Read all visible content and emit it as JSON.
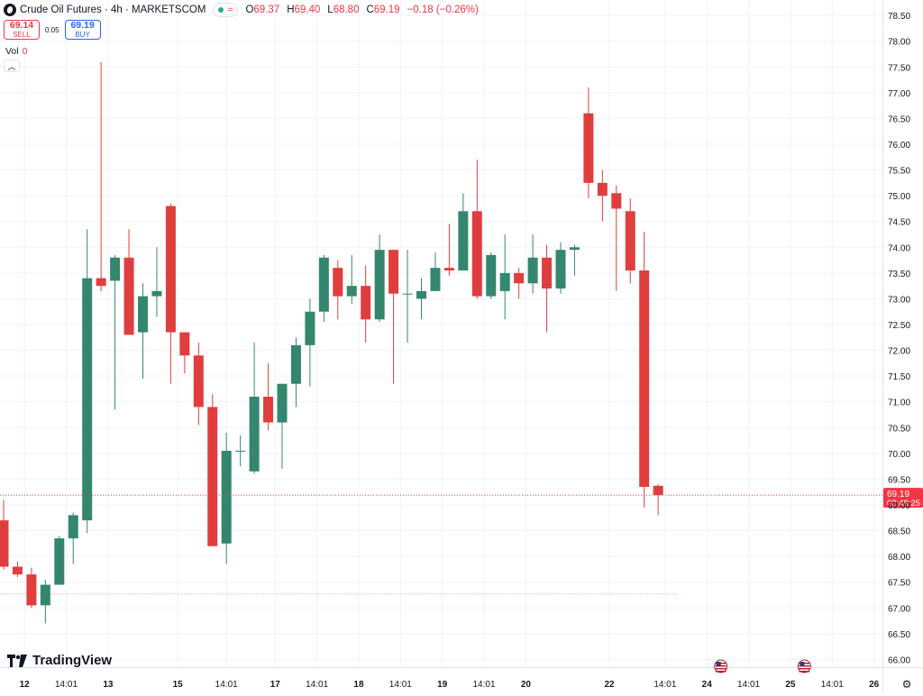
{
  "header": {
    "title": "Crude Oil Futures · 4h · MARKETSCOM",
    "ohlc": [
      {
        "key": "O",
        "value": "69.37"
      },
      {
        "key": "H",
        "value": "69.40"
      },
      {
        "key": "L",
        "value": "68.80"
      },
      {
        "key": "C",
        "value": "69.19"
      }
    ],
    "change": "−0.18 (−0.26%)"
  },
  "trade": {
    "sell_price": "69.14",
    "sell_label": "SELL",
    "spread": "0.05",
    "buy_price": "69.19",
    "buy_label": "BUY"
  },
  "volume": {
    "label": "Vol",
    "value": "0"
  },
  "branding": {
    "name": "TradingView"
  },
  "colors": {
    "up": "#34876e",
    "down": "#e03e3e",
    "price_line": "#f23645",
    "grid": "#f0f3fa"
  },
  "chart_data": {
    "type": "candlestick",
    "instrument": "Crude Oil Futures",
    "interval": "4h",
    "source": "MARKETSCOM",
    "ylim": [
      65.85,
      78.8
    ],
    "y_ticks": [
      "66.00",
      "66.50",
      "67.00",
      "67.50",
      "68.00",
      "68.50",
      "69.00",
      "69.50",
      "70.00",
      "70.50",
      "71.00",
      "71.50",
      "72.00",
      "72.50",
      "73.00",
      "73.50",
      "74.00",
      "74.50",
      "75.00",
      "75.50",
      "76.00",
      "76.50",
      "77.00",
      "77.50",
      "78.00",
      "78.50"
    ],
    "x_ticks": [
      {
        "label": "12",
        "pos": 1.5
      },
      {
        "label": "14:01",
        "pos": 4.5
      },
      {
        "label": "13",
        "pos": 7.5
      },
      {
        "label": "15",
        "pos": 12.5
      },
      {
        "label": "14:01",
        "pos": 16
      },
      {
        "label": "17",
        "pos": 19.5
      },
      {
        "label": "14:01",
        "pos": 22.5
      },
      {
        "label": "18",
        "pos": 25.5
      },
      {
        "label": "14:01",
        "pos": 28.5
      },
      {
        "label": "19",
        "pos": 31.5
      },
      {
        "label": "14:01",
        "pos": 34.5
      },
      {
        "label": "20",
        "pos": 37.5
      },
      {
        "label": "22",
        "pos": 43.5
      },
      {
        "label": "14:01",
        "pos": 47.5
      },
      {
        "label": "24",
        "pos": 50.5
      },
      {
        "label": "14:01",
        "pos": 53.5
      },
      {
        "label": "25",
        "pos": 56.5
      },
      {
        "label": "14:01",
        "pos": 59.5
      },
      {
        "label": "26",
        "pos": 62.5
      }
    ],
    "event_markers": [
      51.5,
      57.5
    ],
    "candles": [
      {
        "o": 68.7,
        "h": 69.1,
        "l": 67.75,
        "c": 67.8
      },
      {
        "o": 67.8,
        "h": 67.9,
        "l": 67.6,
        "c": 67.65
      },
      {
        "o": 67.65,
        "h": 67.78,
        "l": 67.0,
        "c": 67.05
      },
      {
        "o": 67.05,
        "h": 67.55,
        "l": 66.7,
        "c": 67.45
      },
      {
        "o": 67.45,
        "h": 68.4,
        "l": 67.45,
        "c": 68.35
      },
      {
        "o": 68.35,
        "h": 68.85,
        "l": 67.85,
        "c": 68.8
      },
      {
        "o": 68.7,
        "h": 74.35,
        "l": 68.45,
        "c": 73.4
      },
      {
        "o": 73.4,
        "h": 77.6,
        "l": 73.15,
        "c": 73.25
      },
      {
        "o": 73.35,
        "h": 73.85,
        "l": 70.85,
        "c": 73.8
      },
      {
        "o": 73.8,
        "h": 74.35,
        "l": 72.3,
        "c": 72.3
      },
      {
        "o": 72.35,
        "h": 73.3,
        "l": 71.45,
        "c": 73.05
      },
      {
        "o": 73.05,
        "h": 74.0,
        "l": 72.65,
        "c": 73.15
      },
      {
        "o": 74.8,
        "h": 74.85,
        "l": 71.35,
        "c": 72.35
      },
      {
        "o": 72.35,
        "h": 72.35,
        "l": 71.55,
        "c": 71.9
      },
      {
        "o": 71.9,
        "h": 72.15,
        "l": 70.55,
        "c": 70.9
      },
      {
        "o": 70.9,
        "h": 71.15,
        "l": 68.2,
        "c": 68.2
      },
      {
        "o": 68.25,
        "h": 70.4,
        "l": 67.85,
        "c": 70.05
      },
      {
        "o": 70.05,
        "h": 70.35,
        "l": 69.75,
        "c": 70.05
      },
      {
        "o": 69.65,
        "h": 72.15,
        "l": 69.6,
        "c": 71.1
      },
      {
        "o": 71.1,
        "h": 71.75,
        "l": 70.45,
        "c": 70.6
      },
      {
        "o": 70.6,
        "h": 71.25,
        "l": 69.7,
        "c": 71.35
      },
      {
        "o": 71.35,
        "h": 72.25,
        "l": 70.9,
        "c": 72.1
      },
      {
        "o": 72.1,
        "h": 73.0,
        "l": 71.3,
        "c": 72.75
      },
      {
        "o": 72.75,
        "h": 73.85,
        "l": 72.55,
        "c": 73.8
      },
      {
        "o": 73.6,
        "h": 73.75,
        "l": 72.6,
        "c": 73.05
      },
      {
        "o": 73.05,
        "h": 73.85,
        "l": 72.9,
        "c": 73.25
      },
      {
        "o": 73.25,
        "h": 73.65,
        "l": 72.15,
        "c": 72.6
      },
      {
        "o": 72.6,
        "h": 74.25,
        "l": 72.55,
        "c": 73.95
      },
      {
        "o": 73.95,
        "h": 73.95,
        "l": 71.35,
        "c": 73.1
      },
      {
        "o": 73.1,
        "h": 73.95,
        "l": 72.15,
        "c": 73.1
      },
      {
        "o": 73.0,
        "h": 73.4,
        "l": 72.6,
        "c": 73.15
      },
      {
        "o": 73.15,
        "h": 73.9,
        "l": 73.15,
        "c": 73.6
      },
      {
        "o": 73.6,
        "h": 74.45,
        "l": 73.45,
        "c": 73.55
      },
      {
        "o": 73.55,
        "h": 75.05,
        "l": 73.55,
        "c": 74.7
      },
      {
        "o": 74.7,
        "h": 75.7,
        "l": 73.0,
        "c": 73.05
      },
      {
        "o": 73.05,
        "h": 73.9,
        "l": 73.0,
        "c": 73.85
      },
      {
        "o": 73.15,
        "h": 74.25,
        "l": 72.6,
        "c": 73.5
      },
      {
        "o": 73.5,
        "h": 73.6,
        "l": 73.0,
        "c": 73.3
      },
      {
        "o": 73.3,
        "h": 74.25,
        "l": 73.1,
        "c": 73.8
      },
      {
        "o": 73.8,
        "h": 74.05,
        "l": 72.35,
        "c": 73.2
      },
      {
        "o": 73.2,
        "h": 74.1,
        "l": 73.1,
        "c": 73.95
      },
      {
        "o": 73.95,
        "h": 74.05,
        "l": 73.45,
        "c": 74.0
      },
      {
        "o": 76.6,
        "h": 77.1,
        "l": 74.95,
        "c": 75.25
      },
      {
        "o": 75.25,
        "h": 75.5,
        "l": 74.5,
        "c": 75.0
      },
      {
        "o": 75.05,
        "h": 75.2,
        "l": 73.15,
        "c": 74.75
      },
      {
        "o": 74.7,
        "h": 74.95,
        "l": 73.3,
        "c": 73.55
      },
      {
        "o": 73.55,
        "h": 74.3,
        "l": 68.95,
        "c": 69.35
      },
      {
        "o": 69.37,
        "h": 69.4,
        "l": 68.8,
        "c": 69.19
      }
    ],
    "current_price": {
      "value": "69.19",
      "countdown": "02:49:25"
    },
    "reference_line": 67.27
  }
}
